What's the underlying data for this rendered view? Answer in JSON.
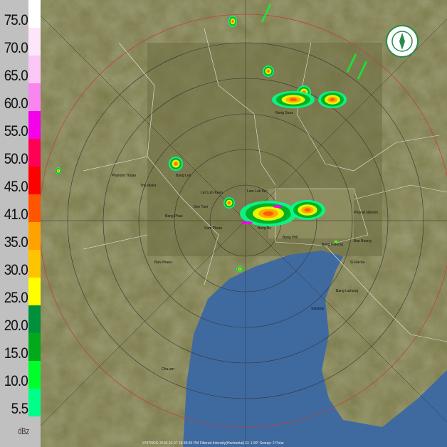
{
  "legend": {
    "unit": "dBz",
    "levels": [
      {
        "label": "75.0",
        "color": "#ffffff"
      },
      {
        "label": "70.0",
        "color": "#fde6fb"
      },
      {
        "label": "65.0",
        "color": "#fbc8f6"
      },
      {
        "label": "60.0",
        "color": "#f986f0"
      },
      {
        "label": "55.0",
        "color": "#f500ea"
      },
      {
        "label": "50.0",
        "color": "#ff0055"
      },
      {
        "label": "45.0",
        "color": "#ff0000"
      },
      {
        "label": "41.0",
        "color": "#ff5500"
      },
      {
        "label": "35.0",
        "color": "#ffa200"
      },
      {
        "label": "30.0",
        "color": "#ffc400"
      },
      {
        "label": "25.0",
        "color": "#ffff00"
      },
      {
        "label": "20.0",
        "color": "#008f3a"
      },
      {
        "label": "15.0",
        "color": "#00aa1a"
      },
      {
        "label": "10.0",
        "color": "#00ff2a"
      },
      {
        "label": "5.5",
        "color": "#00ff88"
      }
    ]
  },
  "map": {
    "colors": {
      "land": "#7a7a4a",
      "sea": "#3f6aa0",
      "border": "#e8e8e0",
      "range_ring": "#333333",
      "outer_ring": "#c04040"
    },
    "places": [
      "Phanom Thuan",
      "Bang Len",
      "Lat Lum Kaeo",
      "Lam Luk Ka",
      "Don Tum",
      "Bang Phae",
      "Sam Phran",
      "Ban Phaeo",
      "Bang Bo",
      "Bang Phli",
      "Bang Pakong",
      "Phanat Nikhom",
      "Si Racha",
      "Bang Lamung",
      "Sattahip",
      "Ban Bueng",
      "Tha Maka",
      "Nong Suea",
      "Cha-am"
    ],
    "echo_colors": [
      "#00ff88",
      "#00ff2a",
      "#00aa1a",
      "#ffff00",
      "#ffa200",
      "#ff5500",
      "#f500ea"
    ]
  },
  "status_line": "974?NOG 2018-10-07 18:35:55 PM Filtered Intensity(Horizontal) El: 1.90° Sweep: 2 Polar"
}
